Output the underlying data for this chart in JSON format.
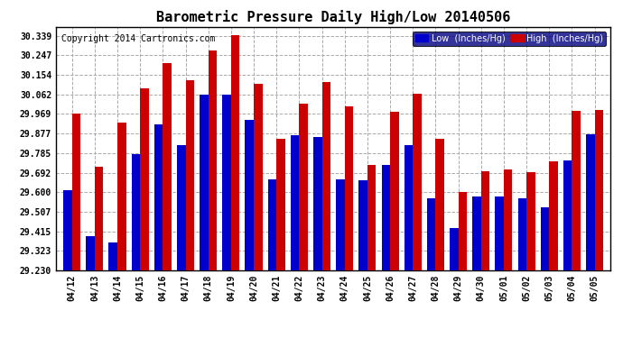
{
  "title": "Barometric Pressure Daily High/Low 20140506",
  "copyright": "Copyright 2014 Cartronics.com",
  "legend_low": "Low  (Inches/Hg)",
  "legend_high": "High  (Inches/Hg)",
  "dates": [
    "04/12",
    "04/13",
    "04/14",
    "04/15",
    "04/16",
    "04/17",
    "04/18",
    "04/19",
    "04/20",
    "04/21",
    "04/22",
    "04/23",
    "04/24",
    "04/25",
    "04/26",
    "04/27",
    "04/28",
    "04/29",
    "04/30",
    "05/01",
    "05/02",
    "05/03",
    "05/04",
    "05/05"
  ],
  "low_values": [
    29.61,
    29.39,
    29.36,
    29.78,
    29.92,
    29.82,
    30.06,
    30.06,
    29.94,
    29.66,
    29.87,
    29.86,
    29.66,
    29.655,
    29.73,
    29.82,
    29.57,
    29.43,
    29.58,
    29.58,
    29.57,
    29.53,
    29.75,
    29.875
  ],
  "high_values": [
    29.97,
    29.72,
    29.93,
    30.09,
    30.21,
    30.13,
    30.27,
    30.34,
    30.11,
    29.85,
    30.02,
    30.12,
    30.005,
    29.73,
    29.98,
    30.065,
    29.85,
    29.6,
    29.7,
    29.705,
    29.695,
    29.745,
    29.985,
    29.99
  ],
  "low_color": "#0000cc",
  "high_color": "#cc0000",
  "bg_color": "#ffffff",
  "grid_color": "#aaaaaa",
  "ymin": 29.23,
  "ymax": 30.38,
  "yticks": [
    29.23,
    29.323,
    29.415,
    29.507,
    29.6,
    29.692,
    29.785,
    29.877,
    29.969,
    30.062,
    30.154,
    30.247,
    30.339
  ],
  "title_fontsize": 11,
  "copyright_fontsize": 7,
  "bar_width": 0.38
}
